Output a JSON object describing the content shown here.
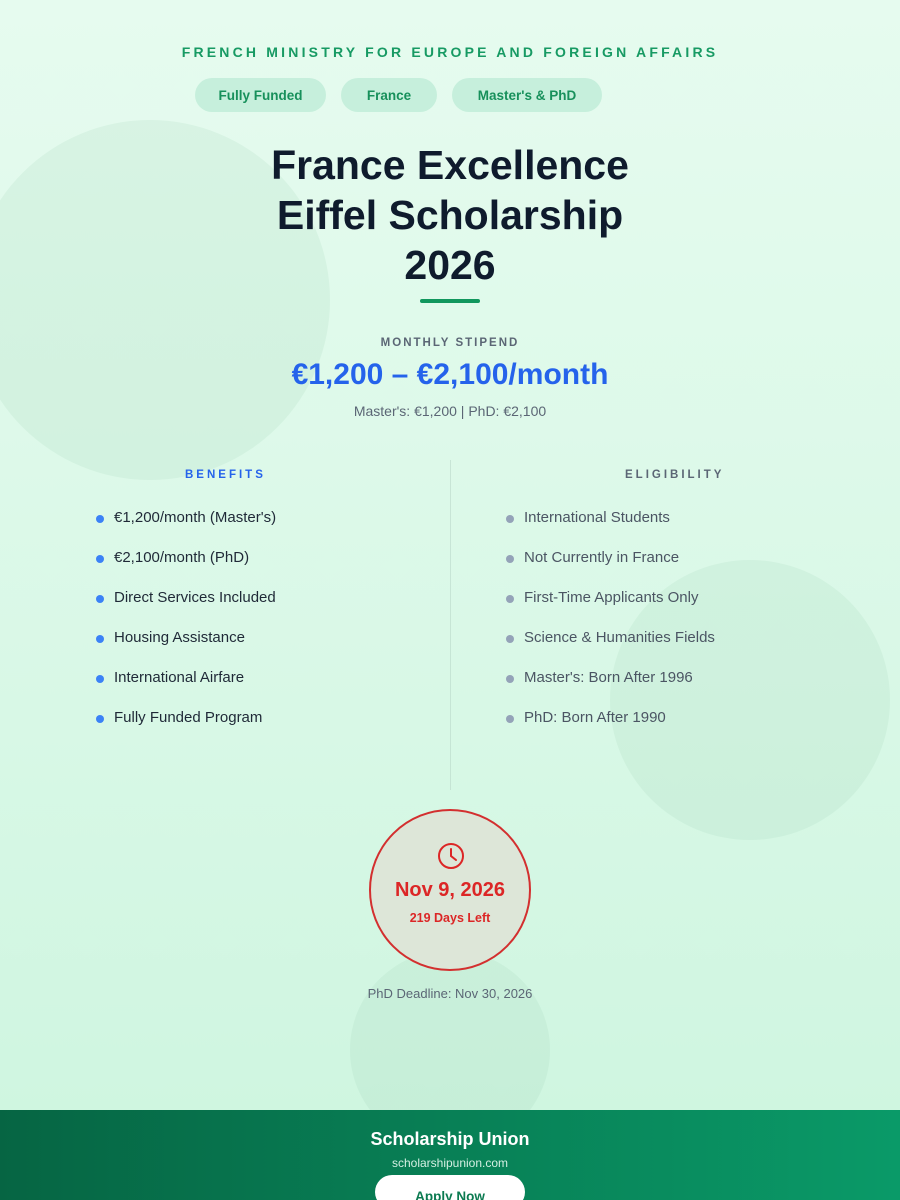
{
  "header": {
    "organization": "FRENCH MINISTRY FOR EUROPE AND FOREIGN AFFAIRS",
    "tags": [
      "Fully Funded",
      "France",
      "Master's & PhD"
    ],
    "title_lines": [
      "France Excellence",
      "Eiffel Scholarship",
      "2026"
    ]
  },
  "stipend": {
    "label": "MONTHLY STIPEND",
    "value": "€1,200 – €2,100/month",
    "detail": "Master's: €1,200 | PhD: €2,100"
  },
  "benefits": {
    "heading": "BENEFITS",
    "items": [
      "€1,200/month (Master's)",
      "€2,100/month (PhD)",
      "Direct Services Included",
      "Housing Assistance",
      "International Airfare",
      "Fully Funded Program"
    ]
  },
  "eligibility": {
    "heading": "ELIGIBILITY",
    "items": [
      "International Students",
      "Not Currently in France",
      "First-Time Applicants Only",
      "Science & Humanities Fields",
      "Master's: Born After 1996",
      "PhD: Born After 1990"
    ]
  },
  "deadline": {
    "icon": "clock-icon",
    "date": "Nov 9, 2026",
    "days_left": "219 Days Left",
    "phd_deadline": "PhD Deadline: Nov 30, 2026"
  },
  "footer": {
    "brand": "Scholarship Union",
    "url": "scholarshipunion.com",
    "cta": "Apply Now"
  },
  "colors": {
    "accent_green": "#11975d",
    "accent_blue": "#2563eb",
    "deadline_red": "#dc2626"
  }
}
